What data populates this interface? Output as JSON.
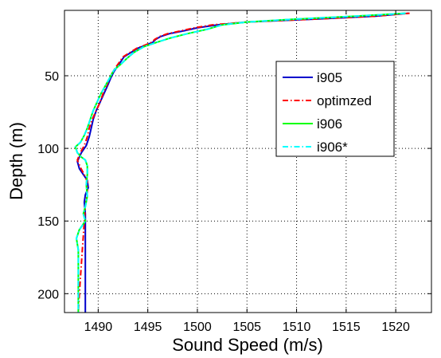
{
  "chart_data": {
    "type": "line",
    "title": "",
    "xlabel": "Sound Speed (m/s)",
    "ylabel": "Depth (m)",
    "xlim": [
      1486.6,
      1523.6
    ],
    "ylim": [
      213,
      5
    ],
    "y_inverted": true,
    "grid": true,
    "legend_position": "right",
    "xticks": [
      1490,
      1495,
      1500,
      1505,
      1510,
      1515,
      1520
    ],
    "yticks": [
      50,
      100,
      150,
      200
    ],
    "series": [
      {
        "name": "i905",
        "color": "#0000cc",
        "dash": "solid",
        "points": [
          [
            1521.3,
            7
          ],
          [
            1518,
            9
          ],
          [
            1512,
            11
          ],
          [
            1505,
            13
          ],
          [
            1502,
            15
          ],
          [
            1500,
            17
          ],
          [
            1498.7,
            19
          ],
          [
            1497.2,
            21
          ],
          [
            1496.3,
            23
          ],
          [
            1495.8,
            25
          ],
          [
            1495.5,
            27
          ],
          [
            1494.8,
            29
          ],
          [
            1494,
            31
          ],
          [
            1493.3,
            34
          ],
          [
            1492.6,
            37
          ],
          [
            1492.3,
            40
          ],
          [
            1492,
            43
          ],
          [
            1491.6,
            47
          ],
          [
            1491.3,
            51
          ],
          [
            1491,
            56
          ],
          [
            1490.6,
            62
          ],
          [
            1490.2,
            68
          ],
          [
            1489.8,
            74
          ],
          [
            1489.5,
            80
          ],
          [
            1489.3,
            86
          ],
          [
            1489.1,
            92
          ],
          [
            1488.8,
            98
          ],
          [
            1488.3,
            103
          ],
          [
            1487.9,
            109
          ],
          [
            1488.1,
            114
          ],
          [
            1488.5,
            118
          ],
          [
            1488.9,
            122
          ],
          [
            1489,
            127
          ],
          [
            1488.7,
            132
          ],
          [
            1488.6,
            137
          ],
          [
            1488.7,
            145
          ],
          [
            1488.7,
            160
          ],
          [
            1488.7,
            180
          ],
          [
            1488.7,
            200
          ],
          [
            1488.7,
            213
          ]
        ]
      },
      {
        "name": "optimzed",
        "color": "#ff0000",
        "dash": "dashdot",
        "points": [
          [
            1521.4,
            7
          ],
          [
            1518,
            9
          ],
          [
            1512,
            11
          ],
          [
            1505,
            13
          ],
          [
            1501.5,
            15
          ],
          [
            1499.7,
            17
          ],
          [
            1498.4,
            19
          ],
          [
            1497,
            21
          ],
          [
            1496.2,
            23
          ],
          [
            1495.7,
            25
          ],
          [
            1495.4,
            27
          ],
          [
            1494.7,
            29
          ],
          [
            1493.9,
            31
          ],
          [
            1493.2,
            34
          ],
          [
            1492.5,
            37
          ],
          [
            1492.2,
            40
          ],
          [
            1491.9,
            43
          ],
          [
            1491.5,
            47
          ],
          [
            1491.2,
            51
          ],
          [
            1490.9,
            56
          ],
          [
            1490.5,
            62
          ],
          [
            1490.2,
            68
          ],
          [
            1489.8,
            74
          ],
          [
            1489.4,
            80
          ],
          [
            1489.1,
            86
          ],
          [
            1488.9,
            92
          ],
          [
            1488.6,
            98
          ],
          [
            1488.2,
            103
          ],
          [
            1487.9,
            108
          ],
          [
            1488.2,
            113
          ],
          [
            1488.6,
            118
          ],
          [
            1488.9,
            123
          ],
          [
            1488.9,
            130
          ],
          [
            1488.7,
            140
          ],
          [
            1488.6,
            150
          ],
          [
            1488.5,
            160
          ],
          [
            1488.4,
            170
          ],
          [
            1488.3,
            180
          ],
          [
            1488.2,
            190
          ],
          [
            1488.1,
            200
          ],
          [
            1488,
            213
          ]
        ]
      },
      {
        "name": "i906",
        "color": "#00ff00",
        "dash": "solid",
        "points": [
          [
            1521,
            7
          ],
          [
            1516,
            9
          ],
          [
            1510,
            11
          ],
          [
            1505,
            13
          ],
          [
            1502.5,
            15
          ],
          [
            1501,
            18
          ],
          [
            1499,
            21
          ],
          [
            1497.3,
            24
          ],
          [
            1495.9,
            27
          ],
          [
            1494.6,
            30
          ],
          [
            1493.6,
            34
          ],
          [
            1492.9,
            38
          ],
          [
            1492.3,
            42
          ],
          [
            1491.6,
            46
          ],
          [
            1491.2,
            51
          ],
          [
            1490.8,
            56
          ],
          [
            1490.3,
            62
          ],
          [
            1489.9,
            68
          ],
          [
            1489.5,
            74
          ],
          [
            1489.2,
            80
          ],
          [
            1488.9,
            86
          ],
          [
            1488.6,
            91
          ],
          [
            1488.2,
            96
          ],
          [
            1487.7,
            99
          ],
          [
            1487.9,
            103
          ],
          [
            1488.3,
            106
          ],
          [
            1488.7,
            108
          ],
          [
            1488.9,
            112
          ],
          [
            1488.9,
            118
          ],
          [
            1488.8,
            125
          ],
          [
            1488.9,
            133
          ],
          [
            1488.7,
            140
          ],
          [
            1488.5,
            145
          ],
          [
            1488.7,
            150
          ],
          [
            1488.1,
            156
          ],
          [
            1487.8,
            162
          ],
          [
            1488,
            170
          ],
          [
            1488,
            180
          ],
          [
            1488,
            190
          ],
          [
            1488,
            200
          ],
          [
            1488,
            213
          ]
        ]
      },
      {
        "name": "i906*",
        "color": "#00ffff",
        "dash": "dashdot",
        "points": [
          [
            1521,
            7
          ],
          [
            1516,
            9
          ],
          [
            1510,
            11
          ],
          [
            1505,
            13
          ],
          [
            1502.5,
            15
          ],
          [
            1501,
            18
          ],
          [
            1499,
            21
          ],
          [
            1497.3,
            24
          ],
          [
            1495.9,
            27
          ],
          [
            1494.6,
            30
          ],
          [
            1493.6,
            34
          ],
          [
            1492.9,
            38
          ],
          [
            1492.3,
            42
          ],
          [
            1491.6,
            46
          ],
          [
            1491.2,
            51
          ],
          [
            1490.8,
            56
          ],
          [
            1490.3,
            62
          ],
          [
            1489.9,
            68
          ],
          [
            1489.5,
            74
          ],
          [
            1489.2,
            80
          ],
          [
            1488.9,
            86
          ],
          [
            1488.6,
            91
          ],
          [
            1488.2,
            96
          ],
          [
            1487.7,
            99
          ],
          [
            1487.9,
            103
          ],
          [
            1488.3,
            106
          ],
          [
            1488.7,
            108
          ],
          [
            1488.9,
            112
          ],
          [
            1488.9,
            118
          ],
          [
            1488.8,
            125
          ],
          [
            1488.9,
            133
          ],
          [
            1488.7,
            140
          ],
          [
            1488.5,
            145
          ],
          [
            1488.7,
            150
          ],
          [
            1488.1,
            156
          ],
          [
            1487.8,
            162
          ],
          [
            1488,
            170
          ],
          [
            1488,
            180
          ],
          [
            1488,
            190
          ],
          [
            1488,
            200
          ],
          [
            1488,
            213
          ]
        ]
      }
    ]
  }
}
